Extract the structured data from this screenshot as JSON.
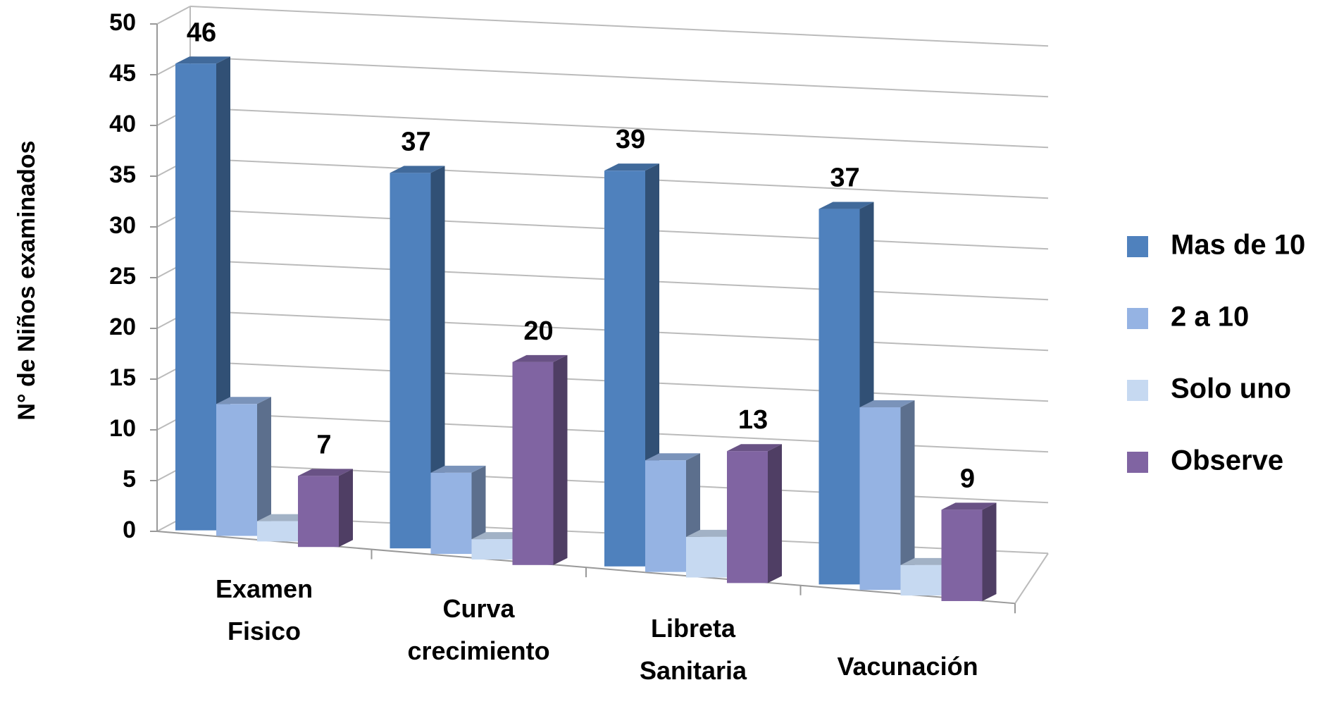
{
  "chart_data": {
    "type": "bar3d",
    "y_label": "N° de Niños examinados",
    "categories": [
      "Examen Fisico",
      "Curva crecimiento",
      "Libreta Sanitaria",
      "Vacunación"
    ],
    "series": [
      {
        "name": "Mas de 10",
        "color": "#4f81bd",
        "values": [
          46,
          37,
          39,
          37
        ],
        "show_labels": true
      },
      {
        "name": "2 a 10",
        "color": "#95b3e3",
        "values": [
          13,
          8,
          11,
          18
        ],
        "show_labels": false
      },
      {
        "name": "Solo uno",
        "color": "#c6d9f1",
        "values": [
          2,
          2,
          4,
          3
        ],
        "show_labels": false
      },
      {
        "name": "Observe",
        "color": "#8064a2",
        "values": [
          7,
          20,
          13,
          9
        ],
        "show_labels": true
      }
    ],
    "ylim": [
      0,
      50
    ],
    "yticks": [
      0,
      5,
      10,
      15,
      20,
      25,
      30,
      35,
      40,
      45,
      50
    ],
    "grid": true,
    "legend": "right"
  }
}
